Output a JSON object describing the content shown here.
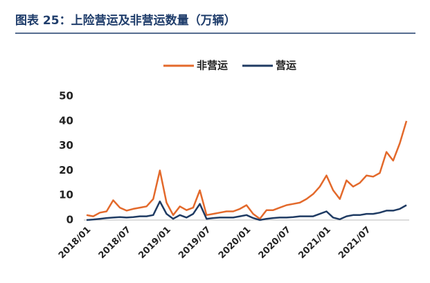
{
  "chart_data": {
    "type": "line",
    "title": "图表 25：上险营运及非营运数量（万辆）",
    "categories": [
      "2018/01",
      null,
      null,
      null,
      null,
      null,
      "2018/07",
      null,
      null,
      null,
      null,
      null,
      "2019/01",
      null,
      null,
      null,
      null,
      null,
      "2019/07",
      null,
      null,
      null,
      null,
      null,
      "2020/01",
      null,
      null,
      null,
      null,
      null,
      "2020/07",
      null,
      null,
      null,
      null,
      null,
      "2021/01",
      null,
      null,
      null,
      null,
      null,
      "2021/07",
      null,
      null,
      null,
      null,
      null,
      null
    ],
    "series": [
      {
        "name": "非营运",
        "color": "#e3692b",
        "values": [
          2,
          1.5,
          3,
          3.5,
          8,
          5,
          3.8,
          4.5,
          5,
          5.5,
          8.5,
          20,
          7,
          2,
          5.5,
          4,
          5,
          12,
          2,
          2.5,
          3,
          3.5,
          3.5,
          4.5,
          6,
          2.5,
          0.5,
          4,
          4,
          5,
          6,
          6.5,
          7,
          8.5,
          10.5,
          13.5,
          18,
          12,
          8.5,
          16,
          13.5,
          15,
          18,
          17.5,
          19,
          27.5,
          24,
          31,
          40
        ]
      },
      {
        "name": "营运",
        "color": "#1f3b63",
        "values": [
          0,
          0.2,
          0.5,
          0.8,
          1,
          1.2,
          1,
          1.2,
          1.5,
          1.5,
          2,
          7.5,
          2.5,
          0.5,
          2,
          1,
          2.5,
          6.5,
          0.5,
          0.8,
          1,
          1,
          1,
          1.5,
          2,
          0.8,
          0,
          0.5,
          0.8,
          1,
          1,
          1.2,
          1.5,
          1.5,
          1.5,
          2.5,
          3.5,
          1,
          0.3,
          1.5,
          2,
          2,
          2.5,
          2.5,
          3,
          3.8,
          3.8,
          4.5,
          6
        ]
      }
    ],
    "ylim": [
      0,
      50
    ],
    "yticks": [
      0,
      10,
      20,
      30,
      40,
      50
    ],
    "grid": false,
    "legend": "top"
  }
}
